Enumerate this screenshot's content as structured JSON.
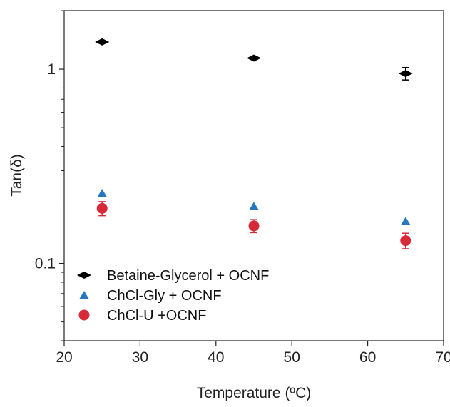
{
  "chart_data": {
    "type": "scatter",
    "xlabel": "Temperature (ºC)",
    "ylabel": "Tan(δ)",
    "xlim": [
      20,
      70
    ],
    "ylim": [
      0.04,
      2.0
    ],
    "yscale": "log",
    "x_ticks": [
      20,
      30,
      40,
      50,
      60,
      70
    ],
    "x_tick_labels": [
      "20",
      "30",
      "40",
      "50",
      "60",
      "70"
    ],
    "y_ticks": [
      0.1,
      1
    ],
    "y_tick_labels": [
      "0.1",
      "1"
    ],
    "grid": false,
    "legend_position": "bottom-left",
    "series": [
      {
        "name": "Betaine-Glycerol + OCNF",
        "marker": "diamond",
        "color": "#000000",
        "x": [
          25,
          45,
          65
        ],
        "y": [
          1.38,
          1.14,
          0.95
        ],
        "err": [
          0.0,
          0.0,
          0.07
        ]
      },
      {
        "name": "ChCl-Gly + OCNF",
        "marker": "triangle",
        "color": "#2378c0",
        "x": [
          25,
          45,
          65
        ],
        "y": [
          0.23,
          0.197,
          0.165
        ],
        "err": [
          0.0,
          0.0,
          0.0
        ]
      },
      {
        "name": "ChCl-U +OCNF",
        "marker": "circle",
        "color": "#d62a38",
        "x": [
          25,
          45,
          65
        ],
        "y": [
          0.192,
          0.156,
          0.131
        ],
        "err": [
          0.016,
          0.012,
          0.012
        ]
      }
    ]
  }
}
